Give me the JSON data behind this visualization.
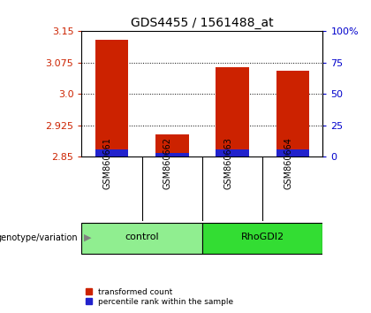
{
  "title": "GDS4455 / 1561488_at",
  "samples": [
    "GSM860661",
    "GSM860662",
    "GSM860663",
    "GSM860664"
  ],
  "red_values": [
    3.13,
    2.903,
    3.065,
    3.055
  ],
  "blue_values": [
    2.868,
    2.858,
    2.868,
    2.866
  ],
  "y_min": 2.85,
  "y_max": 3.15,
  "y_ticks": [
    2.85,
    2.925,
    3.0,
    3.075,
    3.15
  ],
  "y_right_ticks": [
    0,
    25,
    50,
    75,
    100
  ],
  "y_right_labels": [
    "0",
    "25",
    "50",
    "75",
    "100%"
  ],
  "groups": [
    {
      "label": "control",
      "indices": [
        0,
        1
      ],
      "color": "#90EE90"
    },
    {
      "label": "RhoGDI2",
      "indices": [
        2,
        3
      ],
      "color": "#33DD33"
    }
  ],
  "bar_color_red": "#CC2200",
  "bar_color_blue": "#2222CC",
  "bar_width": 0.55,
  "background_color": "#FFFFFF",
  "plot_bg_color": "#FFFFFF",
  "sample_bg_color": "#D3D3D3",
  "genotype_label": "genotype/variation",
  "legend_red": "transformed count",
  "legend_blue": "percentile rank within the sample",
  "title_fontsize": 10,
  "tick_fontsize": 8,
  "label_fontsize": 8
}
